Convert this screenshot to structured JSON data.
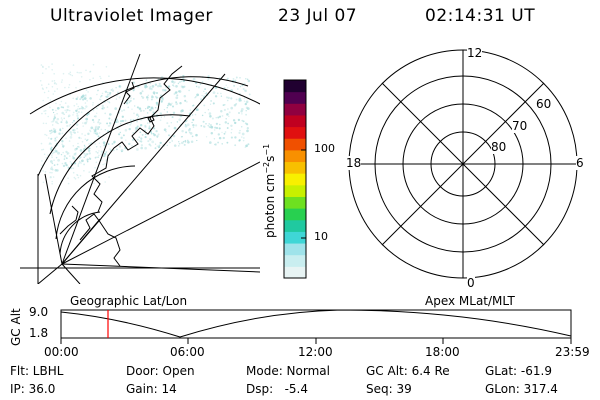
{
  "header": {
    "title": "Ultraviolet Imager",
    "date": "23 Jul 07",
    "time": "02:14:31 UT"
  },
  "colorbar": {
    "unit": "photon cm",
    "tick_high": "100",
    "tick_low": "10",
    "colors": [
      "#e8f4f4",
      "#c9eef0",
      "#9fe3ea",
      "#3fd6d6",
      "#20c9a0",
      "#28d050",
      "#6ee020",
      "#c8f000",
      "#f8f000",
      "#f8c000",
      "#f89000",
      "#f05000",
      "#e01010",
      "#c00020",
      "#900040",
      "#500050",
      "#200030"
    ]
  },
  "polar_plot": {
    "labels": {
      "top": "12",
      "bottom": "0",
      "left": "18",
      "right": "6"
    },
    "ring_labels": [
      "60",
      "70",
      "80"
    ]
  },
  "timeline": {
    "axis_label": "GC Alt",
    "left_caption": "Geographic Lat/Lon",
    "right_caption": "Apex MLat/MLT",
    "y_top": "9.0",
    "y_bottom": "1.8",
    "x_ticks": [
      "00:00",
      "06:00",
      "12:00",
      "18:00",
      "23:59"
    ]
  },
  "info_grid": {
    "filter": "Flt: LBHL",
    "door": "Door: Open",
    "mode": "Mode: Normal",
    "gc_alt": "GC Alt: 6.4 Re",
    "glat": "GLat: -61.9",
    "ip": "IP: 36.0",
    "gain": "Gain: 14",
    "dsp": "Dsp:   -5.4",
    "seq": "Seq: 39",
    "glon": "GLon: 317.4"
  },
  "accent_colors": {
    "marker": "#ff0000",
    "aurora": "#a9dcdc"
  }
}
